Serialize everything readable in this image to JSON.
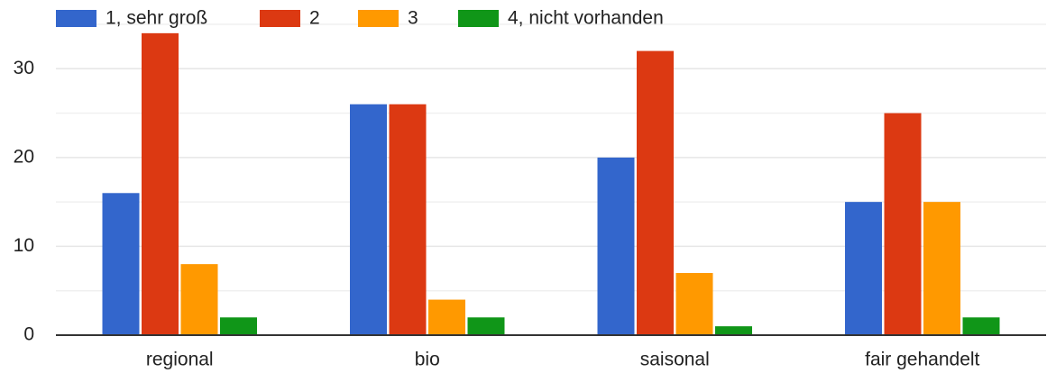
{
  "chart_data": {
    "type": "bar",
    "categories": [
      "regional",
      "bio",
      "saisonal",
      "fair gehandelt"
    ],
    "series": [
      {
        "name": "1, sehr groß",
        "color": "#3366cc",
        "values": [
          16,
          26,
          20,
          15
        ]
      },
      {
        "name": "2",
        "color": "#dc3912",
        "values": [
          34,
          26,
          32,
          25
        ]
      },
      {
        "name": "3",
        "color": "#ff9900",
        "values": [
          8,
          4,
          7,
          15
        ]
      },
      {
        "name": "4, nicht vorhanden",
        "color": "#109618",
        "values": [
          2,
          2,
          1,
          2
        ]
      }
    ],
    "ylim": [
      0,
      35
    ],
    "yticks": [
      0,
      10,
      20,
      30
    ],
    "minor_yticks": [
      5,
      15,
      25,
      35
    ],
    "grid": true,
    "legend": "top"
  }
}
